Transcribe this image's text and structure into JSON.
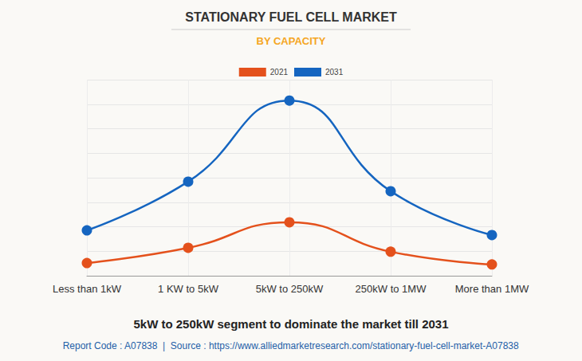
{
  "chart_data": {
    "type": "line",
    "title": "STATIONARY FUEL CELL MARKET",
    "subtitle": "BY CAPACITY",
    "categories": [
      "Less than 1kW",
      "1 KW to 5kW",
      "5kW to 250kW",
      "250kW to 1MW",
      "More than 1MW"
    ],
    "series": [
      {
        "name": "2021",
        "color": "#e4511c",
        "values": [
          0.52,
          1.14,
          2.18,
          0.98,
          0.46
        ]
      },
      {
        "name": "2031",
        "color": "#1565c0",
        "values": [
          1.85,
          3.84,
          7.15,
          3.45,
          1.66
        ]
      }
    ],
    "ylim": [
      0,
      8
    ],
    "yticks": [
      0,
      1,
      2,
      3,
      4,
      5,
      6,
      7,
      8
    ],
    "grid": true,
    "legend": "top",
    "tick_labels": "x",
    "marker": "circle",
    "line_style": "smooth",
    "annotations": [
      "5kW to 250kW segment to dominate the market till 2031",
      "Report Code : A07838  |  Source : https://www.alliedmarketresearch.com/stationary-fuel-cell-market-A07838"
    ]
  }
}
